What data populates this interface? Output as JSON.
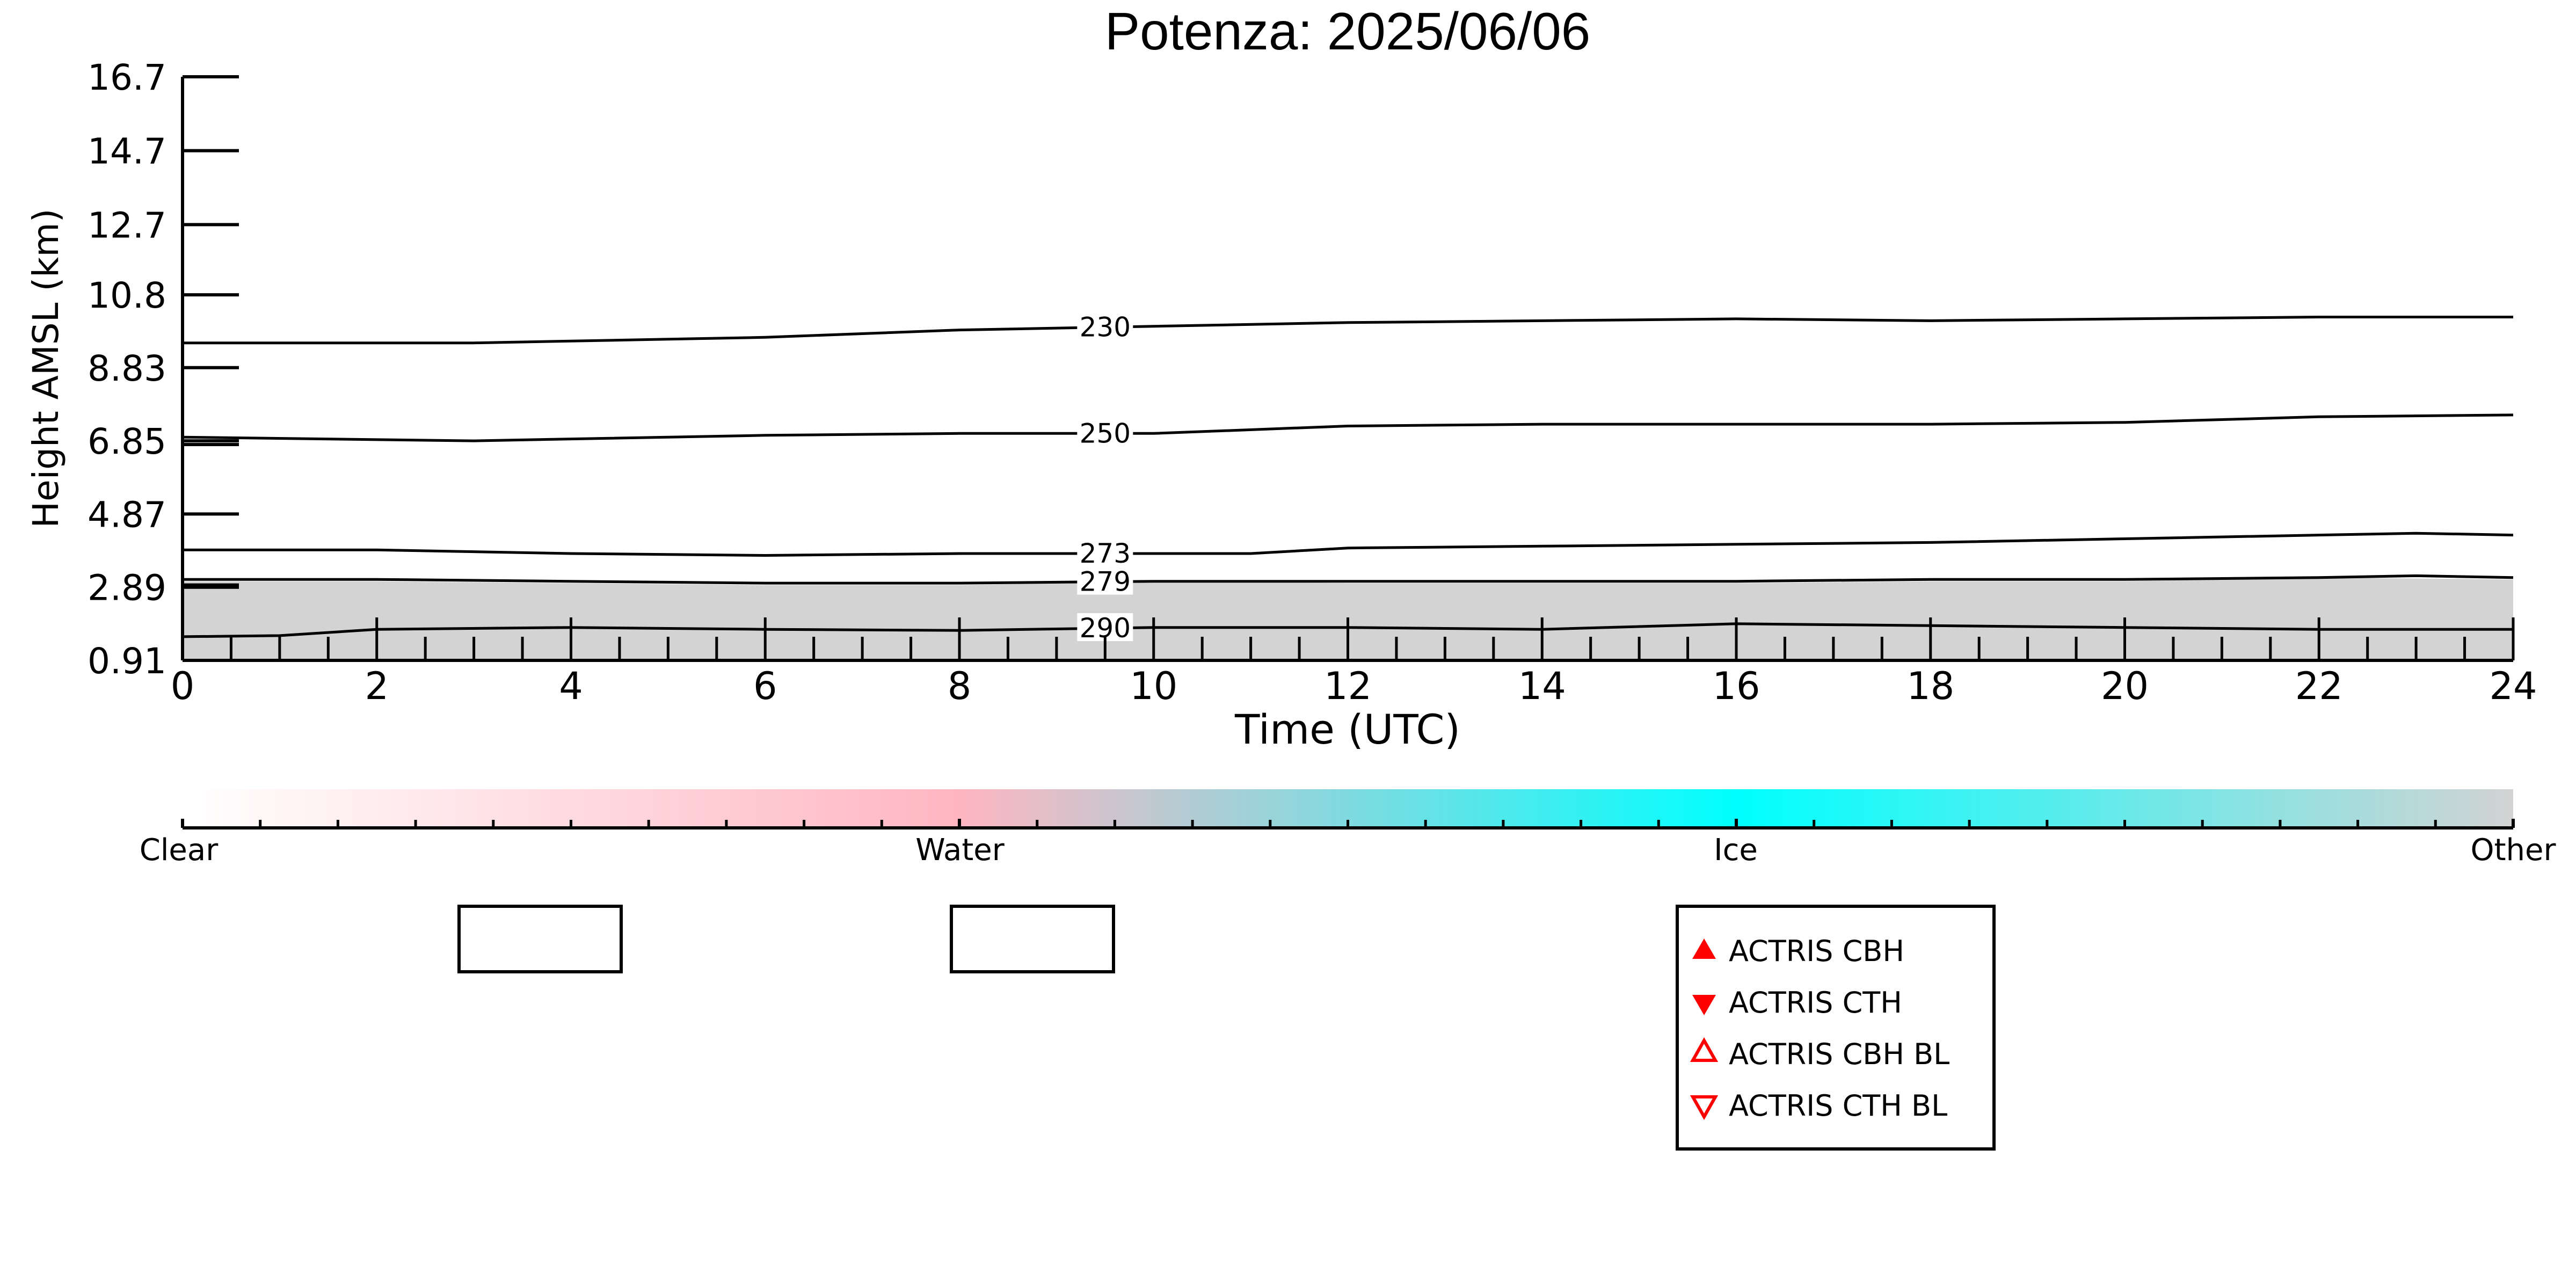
{
  "chart_data": {
    "type": "heatmap",
    "title": "Potenza: 2025/06/06",
    "xlabel": "Time (UTC)",
    "ylabel": "Height AMSL (km)",
    "xlim": [
      0,
      24
    ],
    "ylim": [
      0.91,
      16.7
    ],
    "x_ticks": [
      "0",
      "2",
      "4",
      "6",
      "8",
      "10",
      "12",
      "14",
      "16",
      "18",
      "20",
      "22",
      "24"
    ],
    "y_ticks": [
      "16.7",
      "14.7",
      "12.7",
      "10.8",
      "8.83",
      "6.85",
      "4.87",
      "2.89",
      "0.91"
    ],
    "y_tick_values": [
      16.7,
      14.7,
      12.7,
      10.8,
      8.83,
      6.85,
      4.87,
      2.89,
      0.91
    ],
    "mask": {
      "color": "#d3d3d3",
      "description_values": "Other-class (grey) returns from surface to about 3 km",
      "top_km": [
        [
          0,
          3.05
        ],
        [
          2,
          3.05
        ],
        [
          4,
          3.0
        ],
        [
          6,
          2.95
        ],
        [
          8,
          2.95
        ],
        [
          10,
          3.05
        ],
        [
          12,
          3.0
        ],
        [
          14,
          3.0
        ],
        [
          16,
          3.0
        ],
        [
          18,
          3.05
        ],
        [
          20,
          3.05
        ],
        [
          22,
          3.15
        ],
        [
          24,
          3.1
        ]
      ]
    },
    "contours": [
      {
        "label": "230",
        "label_x": 9.5,
        "points": [
          [
            0,
            9.5
          ],
          [
            3,
            9.5
          ],
          [
            6,
            9.65
          ],
          [
            8,
            9.85
          ],
          [
            10,
            9.95
          ],
          [
            12,
            10.05
          ],
          [
            14,
            10.1
          ],
          [
            16,
            10.15
          ],
          [
            18,
            10.1
          ],
          [
            20,
            10.15
          ],
          [
            22,
            10.2
          ],
          [
            24,
            10.2
          ]
        ]
      },
      {
        "label": "250",
        "label_x": 9.5,
        "points": [
          [
            0,
            6.95
          ],
          [
            3,
            6.85
          ],
          [
            4,
            6.9
          ],
          [
            6,
            7.0
          ],
          [
            8,
            7.05
          ],
          [
            10,
            7.05
          ],
          [
            12,
            7.25
          ],
          [
            14,
            7.3
          ],
          [
            16,
            7.3
          ],
          [
            18,
            7.3
          ],
          [
            20,
            7.35
          ],
          [
            22,
            7.5
          ],
          [
            24,
            7.55
          ]
        ]
      },
      {
        "label": "273",
        "label_x": 9.5,
        "points": [
          [
            0,
            3.9
          ],
          [
            2,
            3.9
          ],
          [
            4,
            3.8
          ],
          [
            6,
            3.75
          ],
          [
            8,
            3.8
          ],
          [
            11,
            3.8
          ],
          [
            12,
            3.95
          ],
          [
            14,
            4.0
          ],
          [
            16,
            4.05
          ],
          [
            18,
            4.1
          ],
          [
            20,
            4.2
          ],
          [
            23,
            4.35
          ],
          [
            24,
            4.3
          ]
        ]
      },
      {
        "label": "279",
        "label_x": 9.5,
        "points": [
          [
            0,
            3.1
          ],
          [
            2,
            3.1
          ],
          [
            4,
            3.05
          ],
          [
            6,
            3.0
          ],
          [
            8,
            3.0
          ],
          [
            10,
            3.05
          ],
          [
            12,
            3.05
          ],
          [
            14,
            3.05
          ],
          [
            16,
            3.05
          ],
          [
            18,
            3.1
          ],
          [
            20,
            3.1
          ],
          [
            22,
            3.15
          ],
          [
            23,
            3.2
          ],
          [
            24,
            3.15
          ]
        ]
      },
      {
        "label": "290",
        "label_x": 9.5,
        "points": [
          [
            0,
            1.55
          ],
          [
            1,
            1.58
          ],
          [
            2,
            1.75
          ],
          [
            4,
            1.8
          ],
          [
            6,
            1.75
          ],
          [
            8,
            1.72
          ],
          [
            10,
            1.8
          ],
          [
            12,
            1.8
          ],
          [
            14,
            1.75
          ],
          [
            16,
            1.9
          ],
          [
            18,
            1.85
          ],
          [
            20,
            1.8
          ],
          [
            22,
            1.75
          ],
          [
            24,
            1.75
          ]
        ]
      }
    ],
    "colorbar": {
      "labels": [
        "Clear",
        "Water",
        "Ice",
        "Other"
      ],
      "stops": [
        "#ffffff",
        "#ffb6c1",
        "#00ffff",
        "#d3d3d3"
      ]
    },
    "legend": {
      "placement": "bottom-right",
      "items": [
        {
          "label": "ACTRIS CBH",
          "marker": "triangle-up-filled",
          "color": "#ff0000"
        },
        {
          "label": "ACTRIS CTH",
          "marker": "triangle-down-filled",
          "color": "#ff0000"
        },
        {
          "label": "ACTRIS CBH BL",
          "marker": "triangle-up-open",
          "color": "#ff0000"
        },
        {
          "label": "ACTRIS CTH BL",
          "marker": "triangle-down-open",
          "color": "#ff0000"
        }
      ]
    }
  }
}
